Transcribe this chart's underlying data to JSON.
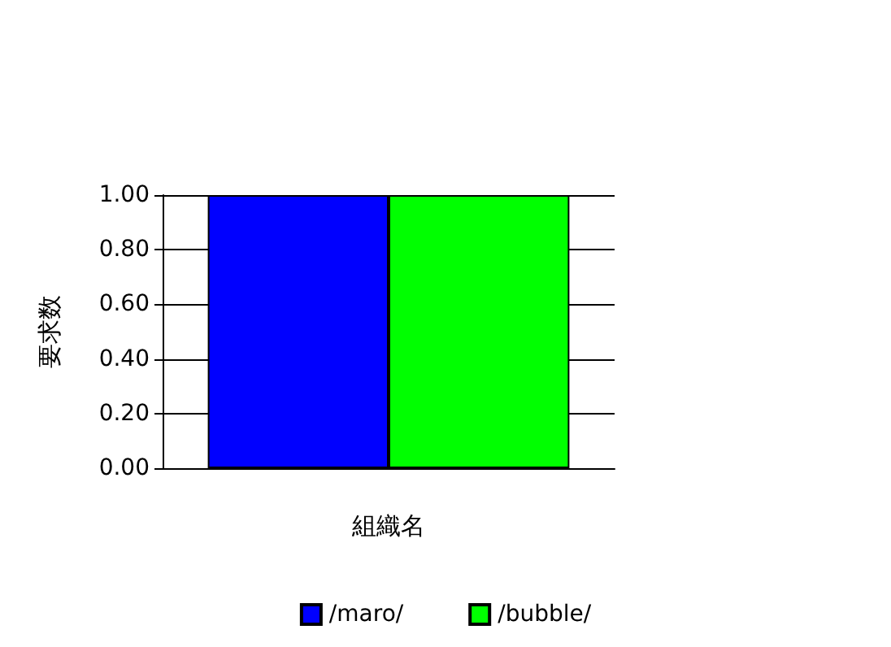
{
  "chart_data": {
    "type": "bar",
    "xlabel": "組織名",
    "ylabel": "要求数",
    "categories": [
      null
    ],
    "series": [
      {
        "name": "/maro/",
        "color": "#0000ff",
        "values": [
          1.0
        ]
      },
      {
        "name": "/bubble/",
        "color": "#00ff00",
        "values": [
          1.0
        ]
      }
    ],
    "ylim": [
      0,
      1
    ],
    "yticks": [
      {
        "value": 0,
        "label": "0.00"
      },
      {
        "value": 0.2,
        "label": "0.20"
      },
      {
        "value": 0.4,
        "label": "0.40"
      },
      {
        "value": 0.6,
        "label": "0.60"
      },
      {
        "value": 0.8,
        "label": "0.80"
      },
      {
        "value": 1,
        "label": "1.00"
      }
    ],
    "grid": true,
    "legend": "bottom"
  }
}
